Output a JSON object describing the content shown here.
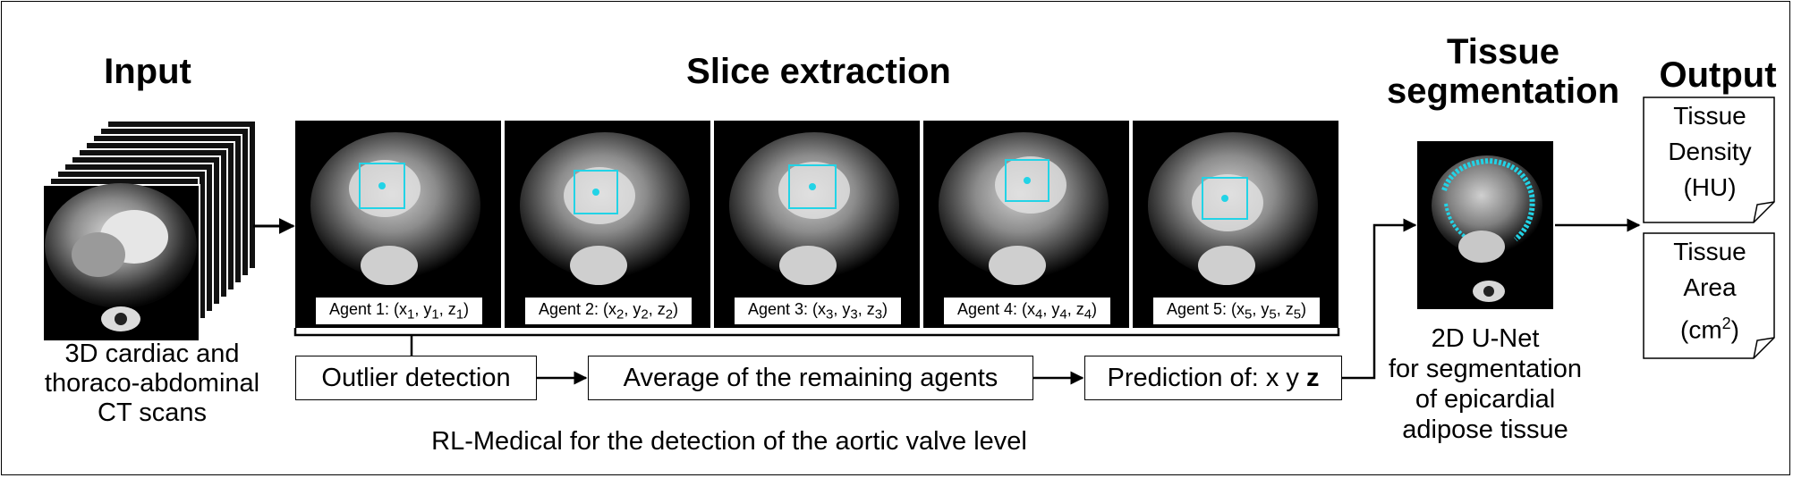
{
  "headers": {
    "input": "Input",
    "slice_extraction": "Slice extraction",
    "tissue_segmentation": [
      "Tissue",
      "segmentation"
    ],
    "output": "Output"
  },
  "input_caption": [
    "3D cardiac and",
    "thoraco-abdominal",
    "CT scans"
  ],
  "agents": [
    {
      "prefix": "Agent 1: (x",
      "sub": "1"
    },
    {
      "prefix": "Agent 2: (x",
      "sub": "2"
    },
    {
      "prefix": "Agent 3: (x",
      "sub": "3"
    },
    {
      "prefix": "Agent 4: (x",
      "sub": "4"
    },
    {
      "prefix": "Agent 5: (x",
      "sub": "5"
    }
  ],
  "pipeline": {
    "outlier": "Outlier detection",
    "average": "Average of the remaining agents",
    "prediction_prefix": "Prediction of: x y ",
    "prediction_bold": "z"
  },
  "rl_caption": "RL-Medical for the detection of the aortic valve level",
  "segmentation_caption": [
    "2D U-Net",
    "for segmentation",
    "of epicardial",
    "adipose tissue"
  ],
  "output_notes": {
    "density": [
      "Tissue",
      "Density",
      "(HU)"
    ],
    "area": [
      "Tissue",
      "Area",
      "(cm",
      "2",
      ")"
    ]
  },
  "colors": {
    "annotation": "#22d3e6",
    "stroke": "#000000"
  }
}
